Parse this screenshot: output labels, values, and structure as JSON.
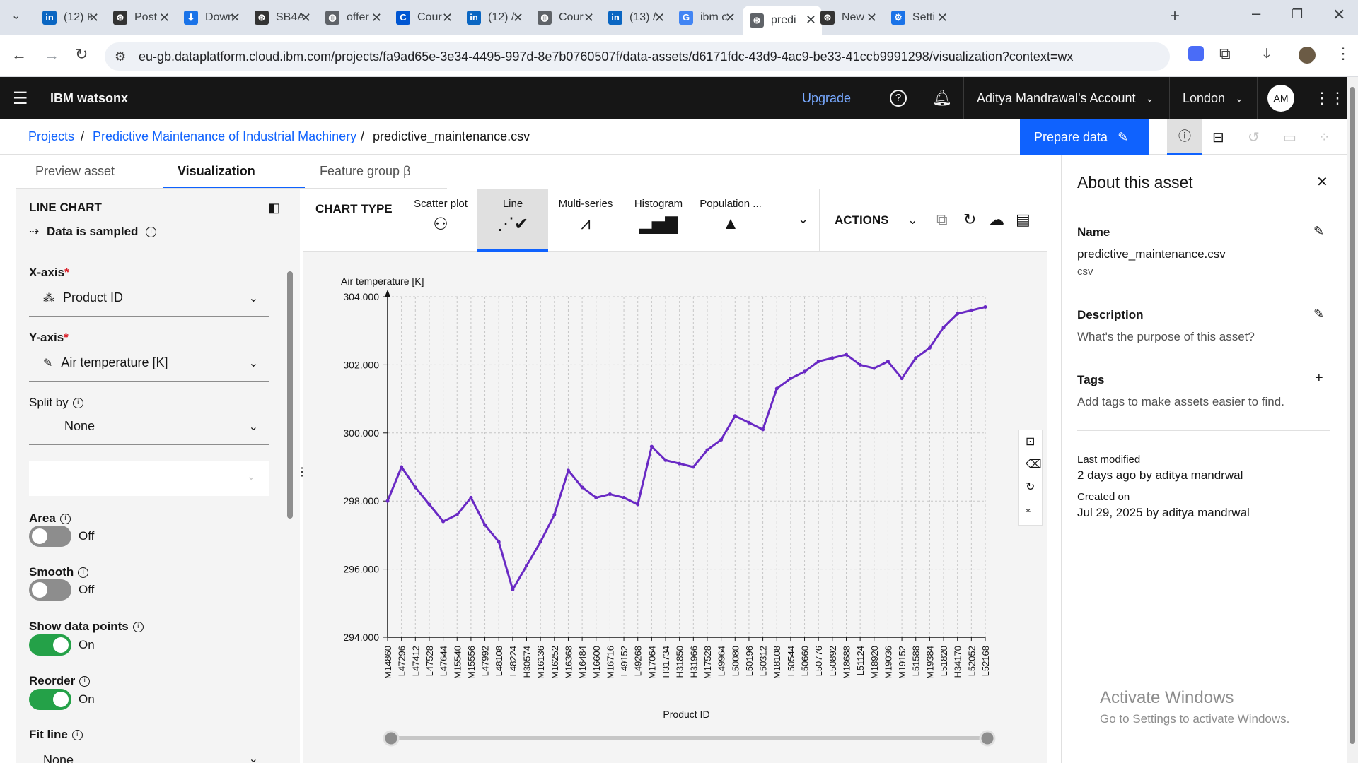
{
  "browser": {
    "tabs": [
      {
        "title": "(12) F",
        "icon": "linkedin-icon",
        "color": "#0a66c2",
        "glyph": "in"
      },
      {
        "title": "Post",
        "icon": "openai-icon",
        "color": "#333333",
        "glyph": "⊛"
      },
      {
        "title": "Down",
        "icon": "download-icon",
        "color": "#1a73e8",
        "glyph": "⬇"
      },
      {
        "title": "SB4A",
        "icon": "openai-icon",
        "color": "#333333",
        "glyph": "⊛"
      },
      {
        "title": "offer",
        "icon": "globe-icon",
        "color": "#5f6368",
        "glyph": "◍"
      },
      {
        "title": "Cour",
        "icon": "coursera-icon",
        "color": "#0056d2",
        "glyph": "C"
      },
      {
        "title": "(12) /",
        "icon": "linkedin-icon",
        "color": "#0a66c2",
        "glyph": "in"
      },
      {
        "title": "Cour",
        "icon": "globe-icon",
        "color": "#5f6368",
        "glyph": "◍"
      },
      {
        "title": "(13) /",
        "icon": "linkedin-icon",
        "color": "#0a66c2",
        "glyph": "in"
      },
      {
        "title": "ibm c",
        "icon": "google-icon",
        "color": "#4285f4",
        "glyph": "G"
      },
      {
        "title": "predi",
        "icon": "watsonx-icon",
        "color": "#5f6368",
        "glyph": "⊛"
      },
      {
        "title": "New",
        "icon": "openai-icon",
        "color": "#333333",
        "glyph": "⊛"
      },
      {
        "title": "Setti",
        "icon": "settings-icon",
        "color": "#1a73e8",
        "glyph": "⚙"
      }
    ],
    "active_tab_index": 10,
    "url": "eu-gb.dataplatform.cloud.ibm.com/projects/fa9ad65e-3e34-4495-997d-8e7b0760507f/data-assets/d6171fdc-43d9-4ac9-be33-41ccb9991298/visualization?context=wx"
  },
  "header": {
    "product": "IBM watsonx",
    "upgrade": "Upgrade",
    "account": "Aditya Mandrawal's Account",
    "region": "London",
    "avatar": "AM"
  },
  "breadcrumb": {
    "items": [
      "Projects",
      "Predictive Maintenance of Industrial Machinery",
      "predictive_maintenance.csv"
    ],
    "separator": "/",
    "prepare_button": "Prepare data"
  },
  "page_tabs": [
    "Preview asset",
    "Visualization",
    "Feature group β"
  ],
  "left_panel": {
    "title": "LINE CHART",
    "sampled": "Data is sampled",
    "x_axis_label": "X-axis",
    "x_axis_value": "Product ID",
    "y_axis_label": "Y-axis",
    "y_axis_value": "Air temperature [K]",
    "split_label": "Split by",
    "split_value": "None",
    "area_label": "Area",
    "area_state": "Off",
    "smooth_label": "Smooth",
    "smooth_state": "Off",
    "points_label": "Show data points",
    "points_state": "On",
    "reorder_label": "Reorder",
    "reorder_state": "On",
    "fitline_label": "Fit line",
    "fitline_value": "None"
  },
  "chart_toolbar": {
    "label": "CHART TYPE",
    "types": [
      "Scatter plot",
      "Line",
      "Multi-series",
      "Histogram",
      "Population ..."
    ],
    "active_type": "Line",
    "actions": "ACTIONS"
  },
  "chart_data": {
    "type": "line",
    "ylabel": "Air temperature [K]",
    "xlabel": "Product ID",
    "ylim": [
      294,
      304
    ],
    "yticks": [
      "304.000",
      "302.000",
      "300.000",
      "298.000",
      "296.000",
      "294.000"
    ],
    "grid": true,
    "color": "#6929c4",
    "x": [
      "M14860",
      "L47296",
      "L47412",
      "L47528",
      "L47644",
      "M15540",
      "M15556",
      "L47992",
      "L48108",
      "L48224",
      "H30574",
      "M16136",
      "M16252",
      "M16368",
      "M16484",
      "M16600",
      "M16716",
      "L49152",
      "L49268",
      "M17064",
      "H31734",
      "H31850",
      "H31966",
      "M17528",
      "L49964",
      "L50080",
      "L50196",
      "L50312",
      "M18108",
      "L50544",
      "L50660",
      "L50776",
      "L50892",
      "M18688",
      "L51124",
      "M18920",
      "M19036",
      "M19152",
      "L51588",
      "M19384",
      "L51820",
      "H34170",
      "L52052",
      "L52168"
    ],
    "values": [
      298.0,
      299.0,
      298.4,
      297.9,
      297.4,
      297.6,
      298.1,
      297.3,
      296.8,
      295.4,
      296.1,
      296.8,
      297.6,
      298.9,
      298.4,
      298.1,
      298.2,
      298.1,
      297.9,
      299.6,
      299.2,
      299.1,
      299.0,
      299.5,
      299.8,
      300.5,
      300.3,
      300.1,
      301.3,
      301.6,
      301.8,
      302.1,
      302.2,
      302.3,
      302.0,
      301.9,
      302.1,
      301.6,
      302.2,
      302.5,
      303.1,
      303.5,
      303.6,
      303.7
    ]
  },
  "right_panel": {
    "title": "About this asset",
    "name_label": "Name",
    "name_value": "predictive_maintenance.csv",
    "name_type": "csv",
    "desc_label": "Description",
    "desc_placeholder": "What's the purpose of this asset?",
    "tags_label": "Tags",
    "tags_placeholder": "Add tags to make assets easier to find.",
    "modified_label": "Last modified",
    "modified_value": "2 days ago by aditya mandrwal",
    "created_label": "Created on",
    "created_value": "Jul 29, 2025 by aditya mandrwal"
  },
  "watermark": {
    "title": "Activate Windows",
    "subtitle": "Go to Settings to activate Windows."
  }
}
